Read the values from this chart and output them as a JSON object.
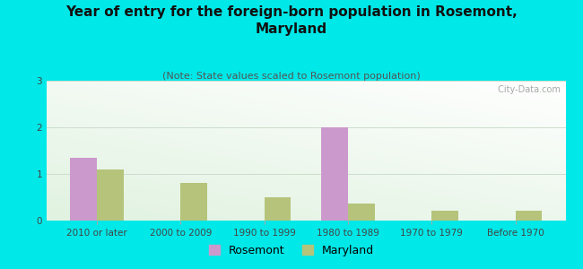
{
  "title": "Year of entry for the foreign-born population in Rosemont,\nMaryland",
  "subtitle": "(Note: State values scaled to Rosemont population)",
  "categories": [
    "2010 or later",
    "2000 to 2009",
    "1990 to 1999",
    "1980 to 1989",
    "1970 to 1979",
    "Before 1970"
  ],
  "rosemont_values": [
    1.35,
    0.0,
    0.0,
    2.0,
    0.0,
    0.0
  ],
  "maryland_values": [
    1.1,
    0.8,
    0.5,
    0.37,
    0.22,
    0.22
  ],
  "rosemont_color": "#cc99cc",
  "maryland_color": "#b5c47a",
  "background_color": "#00e8e8",
  "plot_bg_color": "#e8f5e8",
  "ylim": [
    0,
    3
  ],
  "yticks": [
    0,
    1,
    2,
    3
  ],
  "bar_width": 0.32,
  "title_fontsize": 11,
  "subtitle_fontsize": 8,
  "tick_fontsize": 7.5,
  "legend_fontsize": 9,
  "watermark": " City-Data.com"
}
